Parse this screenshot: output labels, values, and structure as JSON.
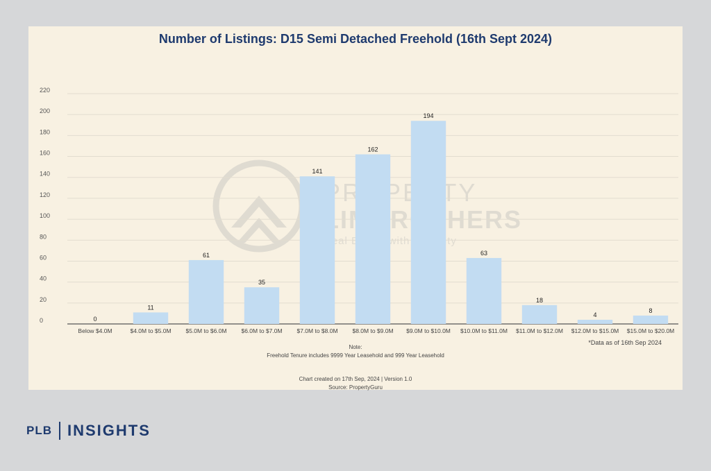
{
  "chart_data": {
    "type": "bar",
    "title": "Number of Listings: D15 Semi Detached Freehold (16th Sept 2024)",
    "xlabel": "",
    "ylabel": "",
    "ylim": [
      0,
      220
    ],
    "yticks": [
      0,
      20,
      40,
      60,
      80,
      100,
      120,
      140,
      160,
      180,
      200,
      220
    ],
    "grid": true,
    "bar_color": "#c2dcf2",
    "categories": [
      "Below $4.0M",
      "$4.0M to $5.0M",
      "$5.0M to $6.0M",
      "$6.0M to $7.0M",
      "$7.0M to $8.0M",
      "$8.0M to $9.0M",
      "$9.0M to $10.0M",
      "$10.0M to $11.0M",
      "$11.0M to $12.0M",
      "$12.0M to $15.0M",
      "$15.0M to $20.0M"
    ],
    "values": [
      0,
      11,
      61,
      35,
      141,
      162,
      194,
      63,
      18,
      4,
      8
    ]
  },
  "watermark": {
    "line1": "PROPERTY",
    "line2": "LIMBROTHERS",
    "tagline": "Real Estate with Integrity"
  },
  "data_note": "*Data as of 16th Sep 2024",
  "notes": {
    "heading": "Note:",
    "tenure": "Freehold Tenure includes 9999 Year Leasehold and 999 Year Leasehold",
    "created": "Chart created on 17th Sep, 2024 | Version 1.0",
    "source": "Source: PropertyGuru"
  },
  "brand": {
    "left": "PLB",
    "right": "INSIGHTS"
  }
}
